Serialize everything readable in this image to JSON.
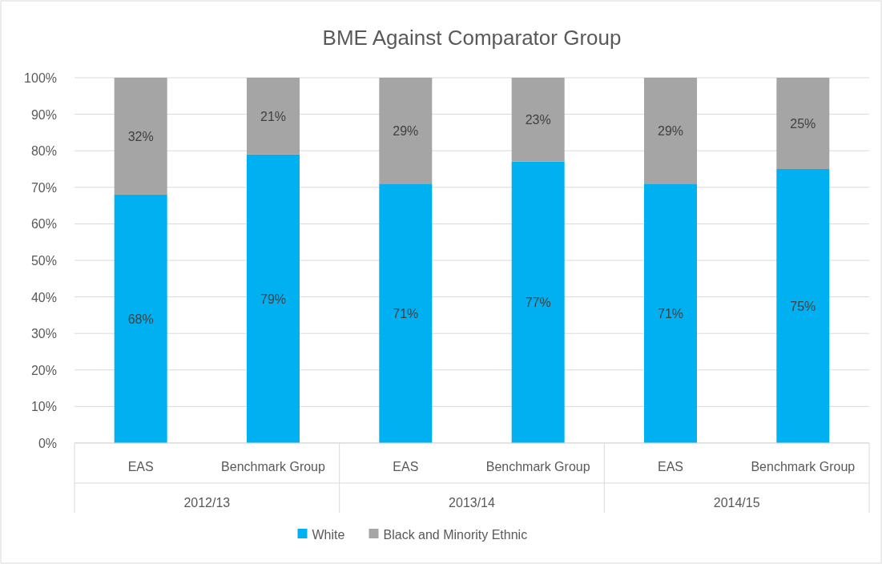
{
  "chart_data": {
    "type": "bar",
    "title": "BME Against Comparator Group",
    "stacked": true,
    "categories": [
      "EAS",
      "Benchmark Group",
      "EAS",
      "Benchmark Group",
      "EAS",
      "Benchmark Group"
    ],
    "series": [
      {
        "name": "White",
        "color": "#00b0f0",
        "values": [
          68,
          79,
          71,
          77,
          71,
          75
        ],
        "value_labels": [
          "68%",
          "79%",
          "71%",
          "77%",
          "71%",
          "75%"
        ]
      },
      {
        "name": "Black and Minority Ethnic",
        "color": "#a5a5a5",
        "values": [
          32,
          21,
          29,
          23,
          29,
          25
        ],
        "value_labels": [
          "32%",
          "21%",
          "29%",
          "23%",
          "29%",
          "25%"
        ]
      }
    ],
    "ylim": [
      0,
      100
    ],
    "yticks": [
      {
        "value": 0,
        "label": "0%"
      },
      {
        "value": 10,
        "label": "10%"
      },
      {
        "value": 20,
        "label": "20%"
      },
      {
        "value": 30,
        "label": "30%"
      },
      {
        "value": 40,
        "label": "40%"
      },
      {
        "value": 50,
        "label": "50%"
      },
      {
        "value": 60,
        "label": "60%"
      },
      {
        "value": 70,
        "label": "70%"
      },
      {
        "value": 80,
        "label": "80%"
      },
      {
        "value": 90,
        "label": "90%"
      },
      {
        "value": 100,
        "label": "100%"
      }
    ],
    "grid": "y",
    "legend": "bottom",
    "annotations": [
      "2012/13",
      "2013/14",
      "2014/15"
    ]
  }
}
